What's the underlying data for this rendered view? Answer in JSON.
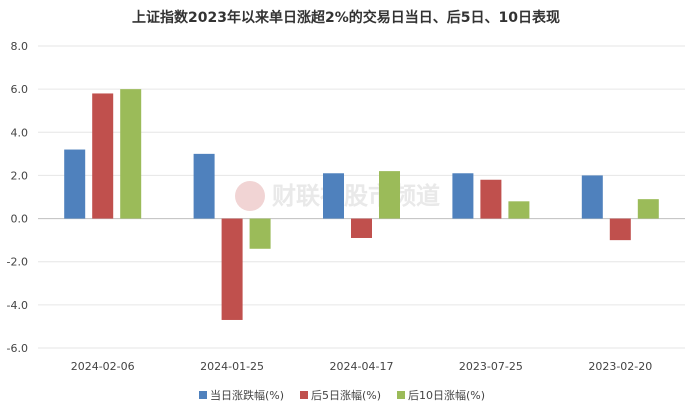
{
  "chart_data": {
    "type": "bar",
    "title": "上证指数2023年以来单日涨超2%的交易日当日、后5日、10日表现",
    "categories": [
      "2024-02-06",
      "2024-01-25",
      "2024-04-17",
      "2023-07-25",
      "2023-02-20"
    ],
    "series": [
      {
        "name": "当日涨跌幅(%)",
        "color": "#4f81bd",
        "values": [
          3.2,
          3.0,
          2.1,
          2.1,
          2.0
        ]
      },
      {
        "name": "后5日涨幅(%)",
        "color": "#c0504d",
        "values": [
          5.8,
          -4.7,
          -0.9,
          1.8,
          -1.0
        ]
      },
      {
        "name": "后10日涨幅(%)",
        "color": "#9bbb59",
        "values": [
          6.0,
          -1.4,
          2.2,
          0.8,
          0.9
        ]
      }
    ],
    "ylim": [
      -6.0,
      8.0
    ],
    "yticks": [
      "8.0",
      "6.0",
      "4.0",
      "2.0",
      "0.0",
      "-2.0",
      "-4.0",
      "-6.0"
    ],
    "grid": true,
    "legend": "bottom",
    "watermark": "财联社股市频道"
  }
}
